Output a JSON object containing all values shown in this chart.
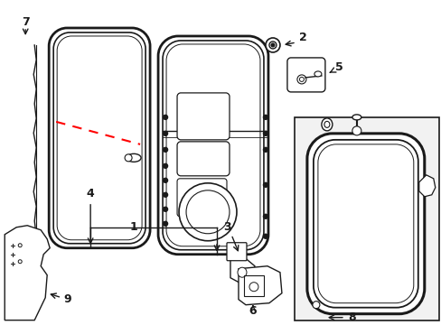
{
  "bg_color": "#ffffff",
  "lc": "#1a1a1a",
  "gray": "#888888",
  "red": "#ff0000",
  "figsize": [
    4.89,
    3.6
  ],
  "dpi": 100
}
